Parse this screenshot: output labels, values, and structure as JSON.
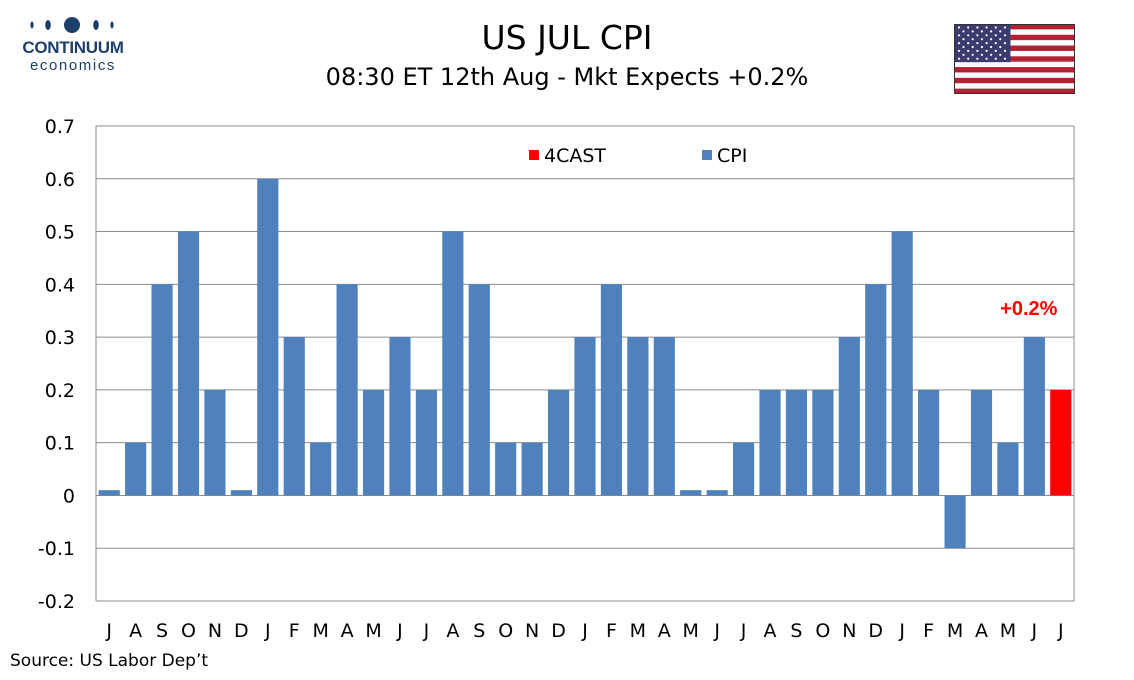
{
  "header": {
    "title": "US JUL CPI",
    "subtitle": "08:30 ET 12th Aug - Mkt Expects +0.2%"
  },
  "logo": {
    "brand": "CONTINUUM",
    "sub": "economics",
    "color": "#1d3f6a"
  },
  "flag": {
    "icon": "us-flag-icon"
  },
  "source": "Source: US Labor Dep’t",
  "chart_data": {
    "type": "bar",
    "title": "",
    "xlabel": "",
    "ylabel": "",
    "ylim": [
      -0.2,
      0.7
    ],
    "yticks": [
      0.7,
      0.6,
      0.5,
      0.4,
      0.3,
      0.2,
      0.1,
      0,
      -0.1,
      -0.2
    ],
    "ytick_labels": [
      "0.7",
      "0.6",
      "0.5",
      "0.4",
      "0.3",
      "0.2",
      "0.1",
      "0",
      "-0.1",
      "-0.2"
    ],
    "grid": true,
    "legend_position": "top-center",
    "categories": [
      "J",
      "A",
      "S",
      "O",
      "N",
      "D",
      "J",
      "F",
      "M",
      "A",
      "M",
      "J",
      "J",
      "A",
      "S",
      "O",
      "N",
      "D",
      "J",
      "F",
      "M",
      "A",
      "M",
      "J",
      "J",
      "A",
      "S",
      "O",
      "N",
      "D",
      "J",
      "F",
      "M",
      "A",
      "M",
      "J",
      "J"
    ],
    "series": [
      {
        "name": "CPI",
        "color": "#4f81bd",
        "values": [
          0.01,
          0.1,
          0.4,
          0.5,
          0.2,
          0.01,
          0.6,
          0.3,
          0.1,
          0.4,
          0.2,
          0.3,
          0.2,
          0.5,
          0.4,
          0.1,
          0.1,
          0.2,
          0.3,
          0.4,
          0.3,
          0.3,
          0.01,
          0.01,
          0.1,
          0.2,
          0.2,
          0.2,
          0.3,
          0.4,
          0.5,
          0.2,
          -0.1,
          0.2,
          0.1,
          0.3,
          null
        ]
      },
      {
        "name": "4CAST",
        "color": "#ff0000",
        "values": [
          null,
          null,
          null,
          null,
          null,
          null,
          null,
          null,
          null,
          null,
          null,
          null,
          null,
          null,
          null,
          null,
          null,
          null,
          null,
          null,
          null,
          null,
          null,
          null,
          null,
          null,
          null,
          null,
          null,
          null,
          null,
          null,
          null,
          null,
          null,
          null,
          0.2
        ]
      }
    ],
    "annotations": [
      {
        "text": "+0.2%",
        "category_index": 36,
        "color": "#ff0000"
      }
    ]
  }
}
